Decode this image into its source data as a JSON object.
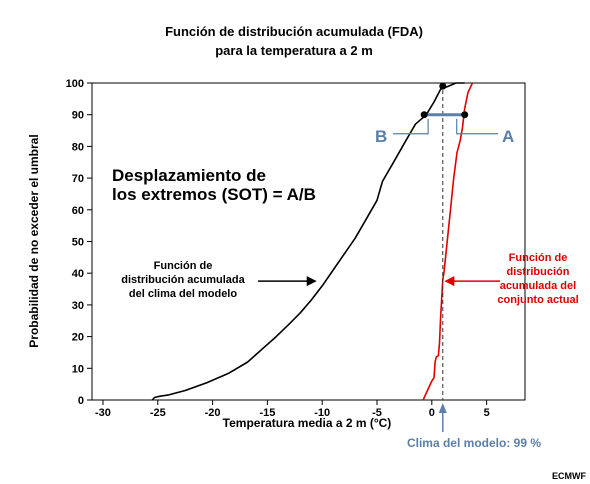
{
  "chart_data": {
    "type": "line",
    "title": [
      "Función de distribución acumulada (FDA)",
      "para la temperatura a 2 m"
    ],
    "xlabel": "Temperatura media a 2 m (°C)",
    "ylabel": "Probabilidad de no exceder el umbral",
    "xlim": [
      -31,
      8.5
    ],
    "ylim": [
      0,
      100
    ],
    "xticks": [
      -30,
      -25,
      -20,
      -15,
      -10,
      -5,
      0,
      5
    ],
    "yticks": [
      0,
      10,
      20,
      30,
      40,
      50,
      60,
      70,
      80,
      90,
      100
    ],
    "grid": false,
    "series": [
      {
        "name": "model-climate-cdf",
        "color": "#000000",
        "x": [
          -25.5,
          -25.3,
          -24.8,
          -24,
          -22.5,
          -20.5,
          -18.5,
          -16.8,
          -15.5,
          -14.2,
          -13,
          -12,
          -11,
          -10,
          -9,
          -8,
          -7,
          -6,
          -5,
          -4.5,
          -3.5,
          -2.5,
          -1.5,
          -0.5,
          0.2,
          0.8,
          1.5,
          2.2,
          3
        ],
        "y": [
          0,
          0.8,
          1.2,
          1.6,
          3,
          5.5,
          8.5,
          12,
          16,
          20,
          24,
          27.5,
          31.5,
          36,
          41,
          46,
          51,
          57,
          63,
          69,
          75,
          81,
          87,
          90,
          94,
          98,
          99,
          100,
          100
        ]
      },
      {
        "name": "ensemble-cdf",
        "color": "#e00000",
        "x": [
          -0.8,
          0,
          0.2,
          0.3,
          0.4,
          0.6,
          0.7,
          0.8,
          1,
          1.1,
          1.4,
          1.7,
          2,
          2.3,
          2.6,
          2.8,
          3,
          3.3,
          3.7
        ],
        "y": [
          0,
          6,
          7,
          12,
          13.5,
          14,
          18,
          26,
          38,
          40,
          50,
          60,
          70,
          78,
          82,
          86,
          92,
          97,
          100
        ]
      }
    ],
    "reference_line": {
      "x": 1,
      "label": "Clima del modelo: 99 %",
      "color": "#5b7fa8"
    },
    "markers": [
      {
        "x": -0.7,
        "y": 90
      },
      {
        "x": 1.0,
        "y": 99
      },
      {
        "x": 3.0,
        "y": 90
      }
    ],
    "annotations": {
      "sot": [
        "Desplazamiento de",
        "los extremos (SOT) = A/B"
      ],
      "model_label": [
        "Función de",
        "distribución acumulada",
        "del clima del modelo"
      ],
      "ensemble_label": [
        "Función de",
        "distribución",
        "acumulada del",
        "conjunto actual"
      ],
      "a": "A",
      "b": "B"
    },
    "credit": "ECMWF"
  }
}
